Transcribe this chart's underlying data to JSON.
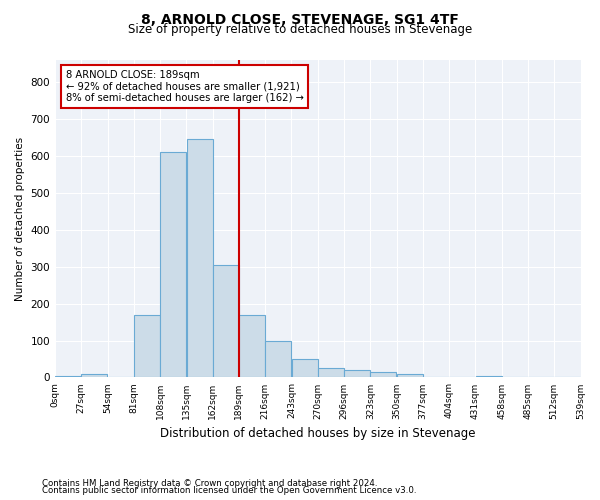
{
  "title1": "8, ARNOLD CLOSE, STEVENAGE, SG1 4TF",
  "title2": "Size of property relative to detached houses in Stevenage",
  "xlabel": "Distribution of detached houses by size in Stevenage",
  "ylabel": "Number of detached properties",
  "annotation_line1": "8 ARNOLD CLOSE: 189sqm",
  "annotation_line2": "← 92% of detached houses are smaller (1,921)",
  "annotation_line3": "8% of semi-detached houses are larger (162) →",
  "property_value": 189,
  "bar_color": "#ccdce8",
  "bar_edge_color": "#6aaad4",
  "vline_color": "#cc0000",
  "box_edge_color": "#cc0000",
  "background_color": "#eef2f8",
  "grid_color": "#ffffff",
  "tick_labels": [
    "0sqm",
    "27sqm",
    "54sqm",
    "81sqm",
    "108sqm",
    "135sqm",
    "162sqm",
    "189sqm",
    "216sqm",
    "243sqm",
    "270sqm",
    "296sqm",
    "323sqm",
    "350sqm",
    "377sqm",
    "404sqm",
    "431sqm",
    "458sqm",
    "485sqm",
    "512sqm",
    "539sqm"
  ],
  "bar_heights": [
    5,
    10,
    0,
    170,
    610,
    645,
    305,
    170,
    100,
    50,
    25,
    20,
    15,
    10,
    0,
    0,
    5,
    0,
    0,
    0
  ],
  "ylim": [
    0,
    860
  ],
  "yticks": [
    0,
    100,
    200,
    300,
    400,
    500,
    600,
    700,
    800
  ],
  "footer1": "Contains HM Land Registry data © Crown copyright and database right 2024.",
  "footer2": "Contains public sector information licensed under the Open Government Licence v3.0."
}
